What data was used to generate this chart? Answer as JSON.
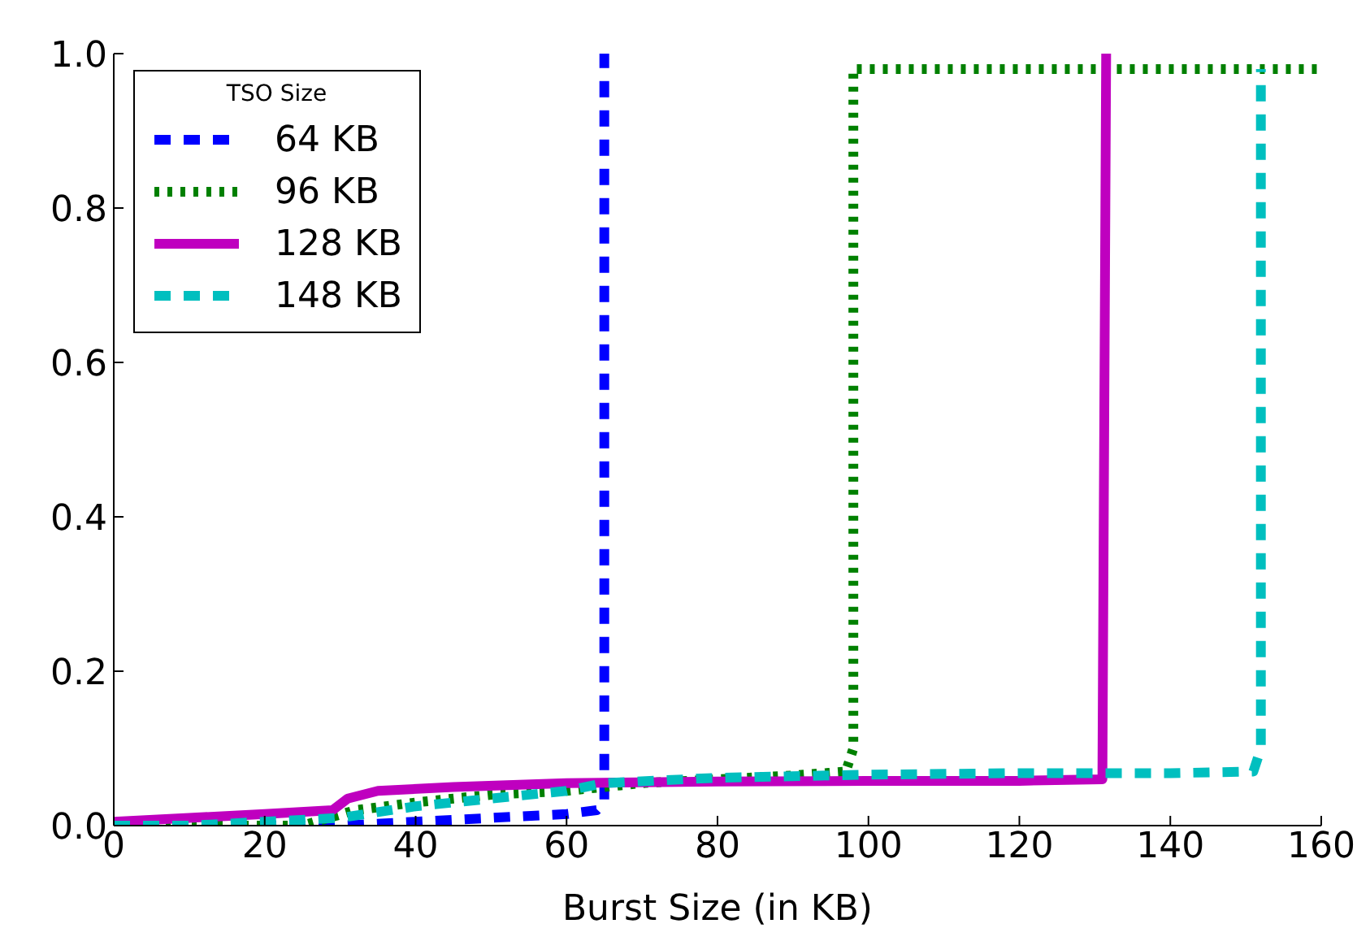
{
  "chart_data": {
    "type": "line",
    "xlabel": "Burst Size (in KB)",
    "legend_title": "TSO Size",
    "legend": "top left",
    "marker": "none",
    "xlim": [
      0,
      160
    ],
    "xticks": [
      0,
      20,
      40,
      60,
      80,
      100,
      120,
      140,
      160
    ],
    "ylim": [
      0,
      1
    ],
    "yticks": [
      {
        "value": 0,
        "label": "0.0"
      },
      {
        "value": 0.2,
        "label": "0.2"
      },
      {
        "value": 0.4,
        "label": "0.4"
      },
      {
        "value": 0.6,
        "label": "0.6"
      },
      {
        "value": 0.8,
        "label": "0.8"
      },
      {
        "value": 1,
        "label": "1.0"
      }
    ],
    "series": [
      {
        "name": "64 KB",
        "color": "#0000ff",
        "line_style": "dashed",
        "x": [
          0,
          30,
          40,
          50,
          60,
          64,
          65,
          65
        ],
        "values": [
          0,
          0,
          0.005,
          0.01,
          0.015,
          0.02,
          0.03,
          1.0
        ]
      },
      {
        "name": "96 KB",
        "color": "#008000",
        "line_style": "dotted",
        "x": [
          0,
          25,
          32,
          40,
          50,
          60,
          70,
          80,
          90,
          97,
          98,
          98,
          160
        ],
        "values": [
          0,
          0,
          0.02,
          0.03,
          0.04,
          0.045,
          0.055,
          0.06,
          0.065,
          0.07,
          0.1,
          0.98,
          0.98
        ]
      },
      {
        "name": "128 KB",
        "color": "#bf00bf",
        "line_style": "solid",
        "x": [
          0,
          10,
          20,
          29,
          31,
          35,
          45,
          60,
          80,
          100,
          120,
          131,
          131.5
        ],
        "values": [
          0.005,
          0.01,
          0.015,
          0.02,
          0.035,
          0.045,
          0.05,
          0.055,
          0.057,
          0.058,
          0.058,
          0.06,
          1.0
        ]
      },
      {
        "name": "148 KB",
        "color": "#00bfbf",
        "line_style": "dashed",
        "x": [
          0,
          10,
          20,
          30,
          40,
          50,
          60,
          65,
          80,
          100,
          120,
          140,
          151,
          152,
          152
        ],
        "values": [
          0,
          0,
          0.005,
          0.01,
          0.025,
          0.035,
          0.045,
          0.055,
          0.062,
          0.066,
          0.068,
          0.068,
          0.07,
          0.1,
          0.98
        ]
      }
    ]
  }
}
